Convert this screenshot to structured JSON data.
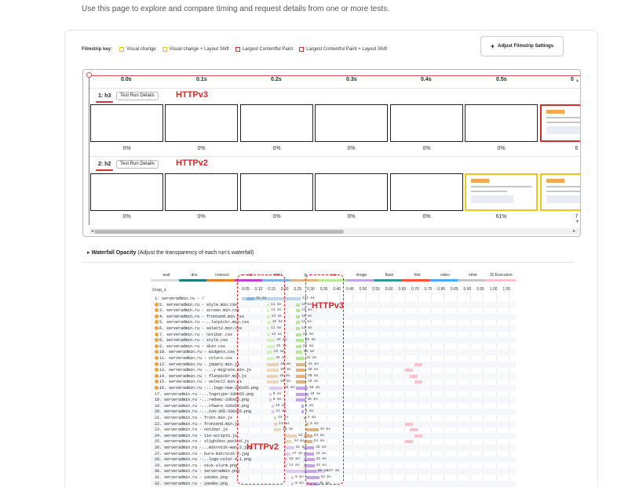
{
  "intro": "Use this page to explore and compare timing and request details from one or more tests.",
  "filmstrip_key": {
    "title": "Filmstrip key:",
    "items": [
      {
        "label": "Visual change",
        "color": "#f0c419",
        "style": "solid"
      },
      {
        "label": "Visual change + Layout Shift",
        "color": "#f0c419",
        "style": "dashed"
      },
      {
        "label": "Largest Contentful Paint",
        "color": "#d82a2a",
        "style": "solid"
      },
      {
        "label": "Largest Contentful Paint + Layout Shift",
        "color": "#d82a2a",
        "style": "dashed"
      }
    ]
  },
  "adjust_button": {
    "icon": "plus-icon",
    "label": "Adjust Filmstrip Settings"
  },
  "filmstrip": {
    "times": [
      "0.0s",
      "0.1s",
      "0.2s",
      "0.3s",
      "0.4s",
      "0.5s",
      "0"
    ],
    "runs": [
      {
        "label": "1: h3",
        "details": "Test Run Details",
        "protocol": "HTTPv3",
        "percents": [
          "0%",
          "0%",
          "0%",
          "0%",
          "0%",
          "0%",
          "6"
        ]
      },
      {
        "label": "2: h2",
        "details": "Test Run Details",
        "protocol": "HTTPv2",
        "percents": [
          "0%",
          "0%",
          "0%",
          "0%",
          "0%",
          "61%",
          "7"
        ]
      }
    ]
  },
  "waterfall_opacity": {
    "title": "Waterfall Opacity",
    "hint": "(Adjust the transparency of each run's waterfall)"
  },
  "waterfall": {
    "legend": [
      {
        "label": "wait",
        "color": "#dcdcdc"
      },
      {
        "label": "dns",
        "color": "#1f7c83"
      },
      {
        "label": "connect",
        "color": "#e58226"
      },
      {
        "label": "ssl",
        "color": "#c141cd"
      },
      {
        "label": "html",
        "color": "#82b6e2"
      },
      {
        "label": "js",
        "color": "#e0b483"
      },
      {
        "label": "css",
        "color": "#b2ea94"
      },
      {
        "label": "image",
        "color": "#c4a4e7"
      },
      {
        "label": "flash",
        "color": "#2d9999"
      },
      {
        "label": "font",
        "color": "#ff523c"
      },
      {
        "label": "video",
        "color": "#48a8fd"
      },
      {
        "label": "other",
        "color": "#c4c4c4"
      },
      {
        "label": "JS Execution",
        "color": "#ffc0cb"
      }
    ],
    "step": "Step_1",
    "ticks": [
      "0.05",
      "0.10",
      "0.15",
      "0.20",
      "0.25",
      "0.30",
      "0.35",
      "0.40",
      "0.45",
      "0.50",
      "0.55",
      "0.60",
      "0.65",
      "0.70",
      "0.75",
      "0.80",
      "0.85",
      "0.90",
      "0.95",
      "1.00",
      "1.05"
    ],
    "rows": [
      "1. serveradmin.ru - /",
      "2. serveradmin.ru - style.min.css",
      "3. serveradmin.ru - screen.min.css",
      "4. serveradmin.ru - frontend.min.css",
      "5. serveradmin.ru -...latpickr.min.css",
      "6. serveradmin.ru - select2.min.css",
      "7. serveradmin.ru - notibar.css",
      "8. serveradmin.ru - style.css",
      "9. serveradmin.ru - skin.css",
      "10. serveradmin.ru - widgets.css",
      "11. serveradmin.ru - colors.css",
      "12. serveradmin.ru - jquery.min.js",
      "13. serveradmin.ru -...y-migrate.min.js",
      "14. serveradmin.ru - flatpickr.min.js",
      "15. serveradmin.ru - select2.min.js",
      "16. serveradmin.ru -...logo-new-336x65.png",
      "17. serveradmin.ru -...logotype-336x65.png",
      "18. serveradmin.ru -...redsec-336x65.png",
      "19. serveradmin.ru -...ofware-336x65.png",
      "20. serveradmin.ru -...ton-365-336x65.png",
      "21. serveradmin.ru - front.min.js",
      "22. serveradmin.ru - frontend.min.js",
      "23. serveradmin.ru - notibar.js",
      "24. serveradmin.ru - tie-scripts.js",
      "25. serveradmin.ru - slightbox.packed.js",
      "26. serveradmin.ru -...mikrotik-wan-2.jpg",
      "27. serveradmin.ru - kurs-mikrotik-2.jpg",
      "28. serveradmin.ru -...logo-color-4-1.png",
      "29. serveradmin.ru - otus-slurm.png",
      "30. serveradmin.ru - serveradmin.png",
      "31. serveradmin.ru - yandex.png",
      "32. serveradmin.ru - yandex.png"
    ],
    "ms_h3": [
      "31 ms",
      "13 ms",
      "15 ms",
      "15 ms",
      "13 ms",
      "14 ms",
      "20 ms",
      "29 ms",
      "20 ms",
      "23 ms",
      "34 ms",
      "41 ms",
      "40 ms",
      "40 ms",
      "40 ms",
      "46 ms",
      "49 ms",
      "38 ms",
      "8 ms",
      "5 ms",
      "5 ms",
      "6 ms",
      "49 ms",
      "34 ms",
      "34 ms",
      "42 ms",
      "42 ms",
      "43 ms",
      "43 ms",
      "50 ms",
      "52 ms",
      "46 ms"
    ],
    "ms_h2": [
      "237 ms",
      "11 ms",
      "12 ms",
      "13 ms",
      "16 ms",
      "11 ms",
      "13 ms",
      "34 ms",
      "33 ms",
      "23 ms",
      "30 ms",
      "49 ms",
      "50 ms",
      "46 ms",
      "49 ms",
      "55 ms",
      "9 ms",
      "8 ms",
      "10 ms",
      "11 ms",
      "10 ms",
      "13 ms",
      "28 ms",
      "52 ms",
      "34 ms",
      "41 ms",
      "27 ms",
      "15 ms",
      "14 ms",
      "157 ms",
      "0 ms",
      "8 ms"
    ],
    "protocol_v3": "HTTPv3",
    "protocol_v2": "HTTPv2"
  }
}
